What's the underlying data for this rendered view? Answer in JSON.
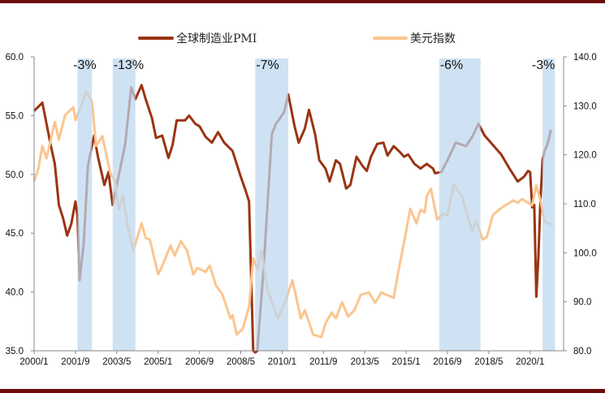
{
  "chart_data": {
    "type": "line",
    "title": "",
    "legend_position": "top",
    "grid": false,
    "x_ticks": [
      "2000/1",
      "2001/9",
      "2003/5",
      "2005/1",
      "2006/9",
      "2008/5",
      "2010/1",
      "2011/9",
      "2013/5",
      "2015/1",
      "2016/9",
      "2018/5",
      "2020/1"
    ],
    "y_left": {
      "range": [
        35,
        60
      ],
      "ticks": [
        "35.0",
        "40.0",
        "45.0",
        "50.0",
        "55.0",
        "60.0"
      ]
    },
    "y_right": {
      "range": [
        80,
        140
      ],
      "ticks": [
        "80.0",
        "90.0",
        "100.0",
        "110.0",
        "120.0",
        "130.0",
        "140.0"
      ]
    },
    "series": [
      {
        "name": "全球制造业PMI",
        "axis": "left",
        "color": "#9a3412",
        "points": [
          [
            "2000-01",
            55.4
          ],
          [
            "2000-05",
            56.1
          ],
          [
            "2000-07",
            54.3
          ],
          [
            "2000-09",
            52.5
          ],
          [
            "2000-11",
            50.9
          ],
          [
            "2001-01",
            47.4
          ],
          [
            "2001-03",
            46.3
          ],
          [
            "2001-05",
            44.8
          ],
          [
            "2001-07",
            45.8
          ],
          [
            "2001-09",
            47.7
          ],
          [
            "2001-10",
            46.5
          ],
          [
            "2001-11",
            41.0
          ],
          [
            "2002-01",
            44.1
          ],
          [
            "2002-03",
            50.7
          ],
          [
            "2002-06",
            53.3
          ],
          [
            "2002-08",
            51.4
          ],
          [
            "2002-11",
            49.1
          ],
          [
            "2003-01",
            50.2
          ],
          [
            "2003-03",
            47.4
          ],
          [
            "2003-05",
            49.1
          ],
          [
            "2003-09",
            52.5
          ],
          [
            "2003-12",
            57.4
          ],
          [
            "2004-02",
            56.4
          ],
          [
            "2004-05",
            57.6
          ],
          [
            "2004-07",
            56.4
          ],
          [
            "2004-10",
            54.8
          ],
          [
            "2004-12",
            53.1
          ],
          [
            "2005-03",
            53.3
          ],
          [
            "2005-06",
            51.4
          ],
          [
            "2005-08",
            52.5
          ],
          [
            "2005-10",
            54.6
          ],
          [
            "2006-02",
            54.6
          ],
          [
            "2006-04",
            55.0
          ],
          [
            "2006-07",
            54.3
          ],
          [
            "2006-09",
            54.1
          ],
          [
            "2006-12",
            53.2
          ],
          [
            "2007-03",
            52.7
          ],
          [
            "2007-06",
            53.6
          ],
          [
            "2007-09",
            52.7
          ],
          [
            "2008-01",
            52.0
          ],
          [
            "2008-05",
            49.8
          ],
          [
            "2008-07",
            48.8
          ],
          [
            "2008-09",
            47.7
          ],
          [
            "2008-11",
            35.0
          ],
          [
            "2008-12",
            34.8
          ],
          [
            "2009-01",
            35.0
          ],
          [
            "2009-04",
            41.9
          ],
          [
            "2009-08",
            53.4
          ],
          [
            "2009-10",
            54.3
          ],
          [
            "2010-02",
            55.3
          ],
          [
            "2010-04",
            56.8
          ],
          [
            "2010-07",
            54.1
          ],
          [
            "2010-09",
            52.7
          ],
          [
            "2010-12",
            53.9
          ],
          [
            "2011-02",
            55.5
          ],
          [
            "2011-05",
            53.4
          ],
          [
            "2011-07",
            51.2
          ],
          [
            "2011-10",
            50.5
          ],
          [
            "2011-12",
            49.4
          ],
          [
            "2012-03",
            51.2
          ],
          [
            "2012-05",
            50.9
          ],
          [
            "2012-08",
            48.8
          ],
          [
            "2012-10",
            49.1
          ],
          [
            "2013-01",
            51.5
          ],
          [
            "2013-04",
            50.7
          ],
          [
            "2013-06",
            50.3
          ],
          [
            "2013-08",
            51.5
          ],
          [
            "2013-11",
            52.6
          ],
          [
            "2014-02",
            52.7
          ],
          [
            "2014-04",
            51.6
          ],
          [
            "2014-07",
            52.4
          ],
          [
            "2014-10",
            51.9
          ],
          [
            "2014-12",
            51.5
          ],
          [
            "2015-02",
            51.7
          ],
          [
            "2015-05",
            50.9
          ],
          [
            "2015-08",
            50.5
          ],
          [
            "2015-11",
            50.9
          ],
          [
            "2016-02",
            50.5
          ],
          [
            "2016-03",
            50.1
          ],
          [
            "2016-06",
            50.2
          ],
          [
            "2016-09",
            51.2
          ],
          [
            "2017-01",
            52.7
          ],
          [
            "2017-06",
            52.4
          ],
          [
            "2017-09",
            53.2
          ],
          [
            "2017-12",
            54.3
          ],
          [
            "2018-03",
            53.3
          ],
          [
            "2018-07",
            52.5
          ],
          [
            "2018-11",
            51.7
          ],
          [
            "2019-03",
            50.5
          ],
          [
            "2019-07",
            49.4
          ],
          [
            "2019-10",
            49.8
          ],
          [
            "2019-12",
            50.3
          ],
          [
            "2020-01",
            50.2
          ],
          [
            "2020-02",
            47.2
          ],
          [
            "2020-03",
            47.4
          ],
          [
            "2020-04",
            39.6
          ],
          [
            "2020-05",
            43.0
          ],
          [
            "2020-06",
            47.8
          ],
          [
            "2020-07",
            51.2
          ],
          [
            "2020-08",
            52.0
          ],
          [
            "2020-09",
            52.4
          ],
          [
            "2020-10",
            53.0
          ],
          [
            "2020-11",
            53.8
          ]
        ]
      },
      {
        "name": "美元指数",
        "axis": "right",
        "color": "#fbc590",
        "points": [
          [
            "2000-01",
            114.6
          ],
          [
            "2000-03",
            117.1
          ],
          [
            "2000-05",
            121.8
          ],
          [
            "2000-07",
            119.3
          ],
          [
            "2000-11",
            126.7
          ],
          [
            "2001-01",
            123.1
          ],
          [
            "2001-04",
            128.1
          ],
          [
            "2001-06",
            128.9
          ],
          [
            "2001-08",
            129.7
          ],
          [
            "2001-09",
            127.1
          ],
          [
            "2001-12",
            130.1
          ],
          [
            "2002-02",
            132.9
          ],
          [
            "2002-05",
            130.9
          ],
          [
            "2002-07",
            121.8
          ],
          [
            "2002-10",
            123.8
          ],
          [
            "2003-02",
            116.0
          ],
          [
            "2003-04",
            114.8
          ],
          [
            "2003-06",
            108.8
          ],
          [
            "2003-08",
            111.8
          ],
          [
            "2003-10",
            106.0
          ],
          [
            "2004-01",
            100.5
          ],
          [
            "2004-05",
            106.0
          ],
          [
            "2004-07",
            103.0
          ],
          [
            "2004-09",
            102.7
          ],
          [
            "2005-01",
            95.6
          ],
          [
            "2005-03",
            97.3
          ],
          [
            "2005-07",
            101.5
          ],
          [
            "2005-09",
            99.4
          ],
          [
            "2005-12",
            102.4
          ],
          [
            "2006-03",
            100.5
          ],
          [
            "2006-06",
            95.6
          ],
          [
            "2006-08",
            96.9
          ],
          [
            "2006-12",
            96.1
          ],
          [
            "2007-02",
            97.4
          ],
          [
            "2007-05",
            93.3
          ],
          [
            "2007-08",
            91.6
          ],
          [
            "2007-12",
            86.6
          ],
          [
            "2008-01",
            87.3
          ],
          [
            "2008-03",
            83.3
          ],
          [
            "2008-06",
            84.5
          ],
          [
            "2008-09",
            89.0
          ],
          [
            "2008-11",
            98.9
          ],
          [
            "2009-01",
            96.6
          ],
          [
            "2009-03",
            100.5
          ],
          [
            "2009-06",
            92.3
          ],
          [
            "2009-11",
            86.6
          ],
          [
            "2010-03",
            90.6
          ],
          [
            "2010-06",
            94.4
          ],
          [
            "2010-08",
            90.6
          ],
          [
            "2010-10",
            86.6
          ],
          [
            "2010-12",
            88.3
          ],
          [
            "2011-04",
            83.3
          ],
          [
            "2011-08",
            82.8
          ],
          [
            "2011-10",
            85.6
          ],
          [
            "2012-01",
            87.8
          ],
          [
            "2012-03",
            86.6
          ],
          [
            "2012-06",
            89.9
          ],
          [
            "2012-09",
            87.0
          ],
          [
            "2012-12",
            88.3
          ],
          [
            "2013-03",
            91.4
          ],
          [
            "2013-07",
            91.9
          ],
          [
            "2013-10",
            89.8
          ],
          [
            "2014-01",
            91.9
          ],
          [
            "2014-07",
            90.8
          ],
          [
            "2014-09",
            95.6
          ],
          [
            "2014-12",
            102.2
          ],
          [
            "2015-03",
            109.0
          ],
          [
            "2015-06",
            106.0
          ],
          [
            "2015-08",
            108.8
          ],
          [
            "2015-10",
            108.2
          ],
          [
            "2015-11",
            111.5
          ],
          [
            "2016-01",
            113.1
          ],
          [
            "2016-04",
            106.8
          ],
          [
            "2016-07",
            108.0
          ],
          [
            "2016-09",
            107.7
          ],
          [
            "2016-12",
            114.0
          ],
          [
            "2017-04",
            111.5
          ],
          [
            "2017-09",
            104.4
          ],
          [
            "2017-11",
            106.5
          ],
          [
            "2018-02",
            102.7
          ],
          [
            "2018-04",
            103.2
          ],
          [
            "2018-07",
            107.7
          ],
          [
            "2018-10",
            108.8
          ],
          [
            "2019-01",
            109.7
          ],
          [
            "2019-05",
            110.7
          ],
          [
            "2019-07",
            110.2
          ],
          [
            "2019-09",
            111.0
          ],
          [
            "2020-02",
            109.7
          ],
          [
            "2020-04",
            113.8
          ],
          [
            "2020-06",
            110.7
          ],
          [
            "2020-08",
            106.4
          ],
          [
            "2020-11",
            105.7
          ]
        ]
      }
    ],
    "shaded_periods": [
      {
        "start": "2001-10",
        "end": "2002-05",
        "label": "-3%"
      },
      {
        "start": "2003-03",
        "end": "2004-02",
        "label": "-13%"
      },
      {
        "start": "2008-12",
        "end": "2010-04",
        "label": "-7%"
      },
      {
        "start": "2016-05",
        "end": "2018-01",
        "label": "-6%"
      },
      {
        "start": "2020-07",
        "end": "2021-01",
        "label": "-3%"
      }
    ],
    "shade_color": "#bdd7ee"
  }
}
